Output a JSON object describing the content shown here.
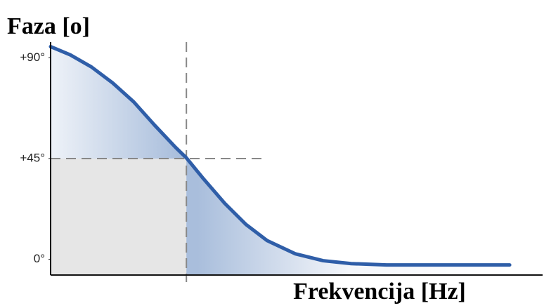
{
  "chart_data": {
    "type": "line",
    "title": "Faza [o]",
    "x_label": "Frekvencija [Hz]",
    "x": [
      0,
      4,
      8.3,
      12.6,
      16.9,
      21.1,
      25.4,
      27.6,
      31.1,
      35.4,
      39.7,
      44,
      49.7,
      55.4,
      61.1,
      68.3,
      75.4,
      82.6,
      93.3
    ],
    "series": [
      {
        "name": "Faza",
        "color": "#2f5ea8",
        "values": [
          95,
          91.3,
          85.9,
          78.8,
          70.3,
          60,
          50,
          45.3,
          35.9,
          25,
          15.6,
          8.4,
          2.5,
          -0.6,
          -1.9,
          -2.5,
          -2.5,
          -2.5,
          -2.5
        ]
      }
    ],
    "xlim": [
      0,
      100
    ],
    "ylim": [
      -7,
      97
    ],
    "yticks": [
      {
        "value": 90,
        "label": "+90°"
      },
      {
        "value": 45,
        "label": "+45°"
      },
      {
        "value": 0,
        "label": "0°"
      }
    ],
    "guides": {
      "x": 27.6,
      "y": 45
    },
    "grid": false
  }
}
